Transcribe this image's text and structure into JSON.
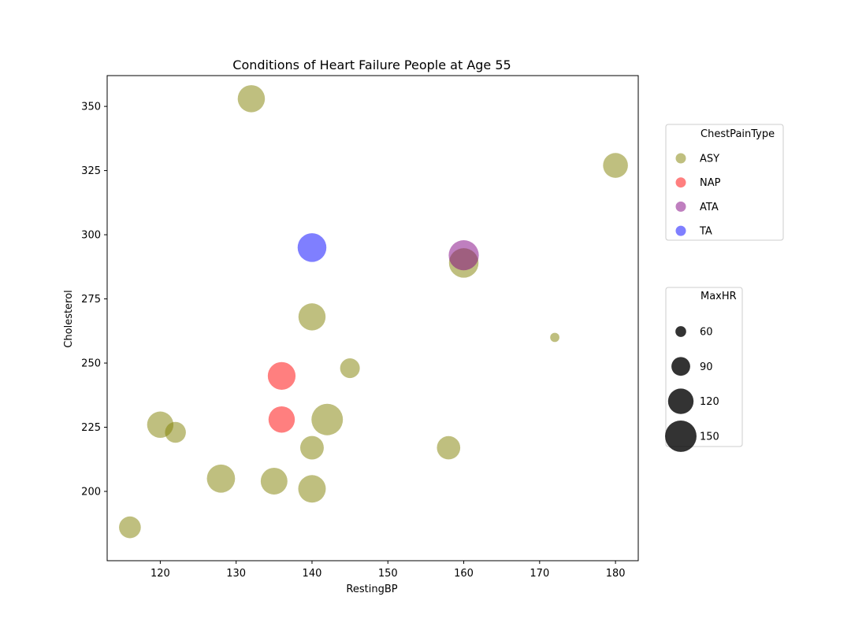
{
  "chart_data": {
    "type": "scatter",
    "title": "Conditions of Heart Failure People at Age 55",
    "xlabel": "RestingBP",
    "ylabel": "Cholesterol",
    "xlim": [
      113,
      183
    ],
    "ylim": [
      173,
      362
    ],
    "xticks": [
      120,
      130,
      140,
      150,
      160,
      170,
      180
    ],
    "yticks": [
      200,
      225,
      250,
      275,
      300,
      325,
      350
    ],
    "grid": false,
    "color_legend": {
      "title": "ChestPainType",
      "placement": "right-upper",
      "entries": [
        {
          "label": "ASY",
          "color": "#808000"
        },
        {
          "label": "NAP",
          "color": "#ff0000"
        },
        {
          "label": "ATA",
          "color": "#800080"
        },
        {
          "label": "TA",
          "color": "#0000ff"
        }
      ]
    },
    "size_legend": {
      "title": "MaxHR",
      "placement": "right-lower",
      "entries": [
        {
          "label": "60",
          "value": 60
        },
        {
          "label": "90",
          "value": 90
        },
        {
          "label": "120",
          "value": 120
        },
        {
          "label": "150",
          "value": 150
        }
      ]
    },
    "marker_alpha": 0.5,
    "points": [
      {
        "x": 132,
        "y": 353,
        "maxhr": 128,
        "type": "ASY"
      },
      {
        "x": 180,
        "y": 327,
        "maxhr": 117,
        "type": "ASY"
      },
      {
        "x": 140,
        "y": 295,
        "maxhr": 136,
        "type": "TA"
      },
      {
        "x": 160,
        "y": 289,
        "maxhr": 140,
        "type": "ASY"
      },
      {
        "x": 160,
        "y": 292,
        "maxhr": 143,
        "type": "ATA"
      },
      {
        "x": 140,
        "y": 268,
        "maxhr": 128,
        "type": "ASY"
      },
      {
        "x": 172,
        "y": 260,
        "maxhr": 55,
        "type": "ASY"
      },
      {
        "x": 145,
        "y": 248,
        "maxhr": 94,
        "type": "ASY"
      },
      {
        "x": 136,
        "y": 245,
        "maxhr": 131,
        "type": "NAP"
      },
      {
        "x": 136,
        "y": 228,
        "maxhr": 124,
        "type": "NAP"
      },
      {
        "x": 142,
        "y": 228,
        "maxhr": 150,
        "type": "ASY"
      },
      {
        "x": 120,
        "y": 226,
        "maxhr": 124,
        "type": "ASY"
      },
      {
        "x": 122,
        "y": 223,
        "maxhr": 99,
        "type": "ASY"
      },
      {
        "x": 140,
        "y": 217,
        "maxhr": 111,
        "type": "ASY"
      },
      {
        "x": 158,
        "y": 217,
        "maxhr": 110,
        "type": "ASY"
      },
      {
        "x": 128,
        "y": 205,
        "maxhr": 133,
        "type": "ASY"
      },
      {
        "x": 135,
        "y": 204,
        "maxhr": 126,
        "type": "ASY"
      },
      {
        "x": 140,
        "y": 201,
        "maxhr": 130,
        "type": "ASY"
      },
      {
        "x": 116,
        "y": 186,
        "maxhr": 103,
        "type": "ASY"
      }
    ]
  }
}
